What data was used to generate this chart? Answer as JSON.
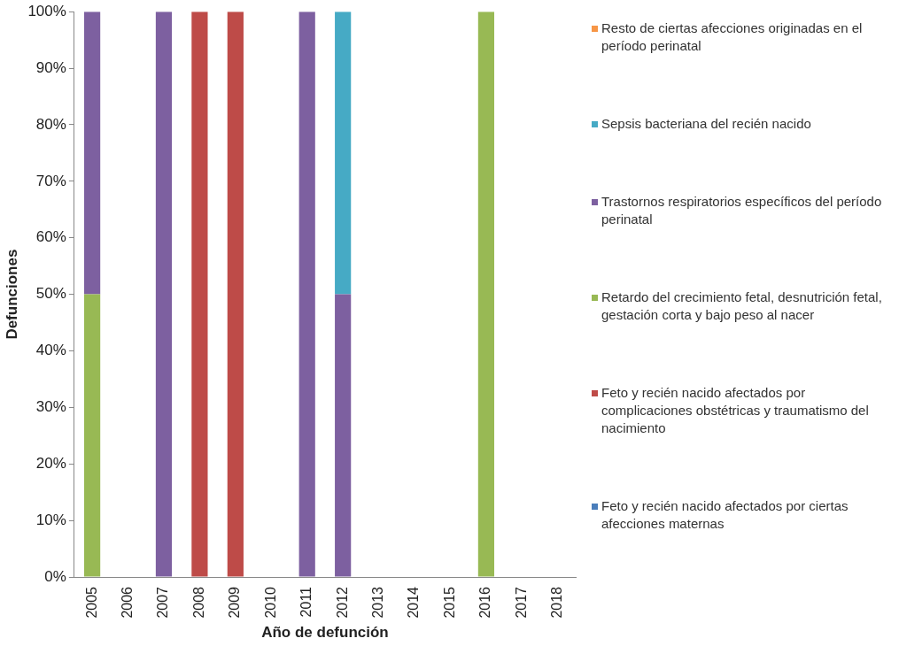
{
  "chart_data": {
    "type": "bar",
    "stacked": true,
    "xlabel": "Año de defunción",
    "ylabel": "Defunciones",
    "categories": [
      "2005",
      "2006",
      "2007",
      "2008",
      "2009",
      "2010",
      "2011",
      "2012",
      "2013",
      "2014",
      "2015",
      "2016",
      "2017",
      "2018"
    ],
    "series": [
      {
        "name": "Feto y recién nacido afectados por ciertas afecciones maternas",
        "color": "#4a7ebb",
        "values": [
          0,
          0,
          0,
          0,
          0,
          0,
          0,
          0,
          0,
          0,
          0,
          0,
          0,
          0
        ]
      },
      {
        "name": "Feto y recién nacido afectados por complicaciones obstétricas y traumatismo del nacimiento",
        "color": "#be4b48",
        "values": [
          0,
          0,
          0,
          100,
          100,
          0,
          0,
          0,
          0,
          0,
          0,
          0,
          0,
          0
        ]
      },
      {
        "name": "Retardo del crecimiento fetal, desnutrición fetal, gestación corta y bajo peso al nacer",
        "color": "#98b954",
        "values": [
          50,
          0,
          0,
          0,
          0,
          0,
          0,
          0,
          0,
          0,
          0,
          100,
          0,
          0
        ]
      },
      {
        "name": "Trastornos respiratorios específicos del período perinatal",
        "color": "#7d60a0",
        "values": [
          50,
          0,
          100,
          0,
          0,
          0,
          100,
          50,
          0,
          0,
          0,
          0,
          0,
          0
        ]
      },
      {
        "name": "Sepsis bacteriana del recién nacido",
        "color": "#46aac5",
        "values": [
          0,
          0,
          0,
          0,
          0,
          0,
          0,
          50,
          0,
          0,
          0,
          0,
          0,
          0
        ]
      },
      {
        "name": "Resto de ciertas afecciones originadas en el período perinatal",
        "color": "#f79646",
        "values": [
          0,
          0,
          0,
          0,
          0,
          0,
          0,
          0,
          0,
          0,
          0,
          0,
          0,
          0
        ]
      }
    ],
    "ylim": [
      0,
      100
    ],
    "yticks": [
      {
        "value": 0,
        "label": "0%"
      },
      {
        "value": 10,
        "label": "10%"
      },
      {
        "value": 20,
        "label": "20%"
      },
      {
        "value": 30,
        "label": "30%"
      },
      {
        "value": 40,
        "label": "40%"
      },
      {
        "value": 50,
        "label": "50%"
      },
      {
        "value": 60,
        "label": "60%"
      },
      {
        "value": 70,
        "label": "70%"
      },
      {
        "value": 80,
        "label": "80%"
      },
      {
        "value": 90,
        "label": "90%"
      },
      {
        "value": 100,
        "label": "100%"
      }
    ],
    "grid": false,
    "legend": "right"
  }
}
